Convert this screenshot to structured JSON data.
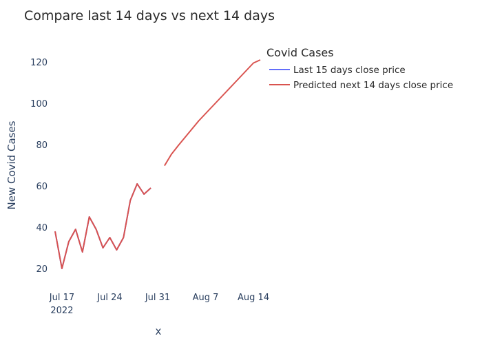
{
  "chart_data": {
    "type": "line",
    "title": "Compare last 14 days vs next 14 days",
    "xlabel": "x",
    "ylabel": "New Covid Cases",
    "x_ticks": [
      {
        "date": "2022-07-17",
        "label": "Jul 17",
        "sublabel": "2022"
      },
      {
        "date": "2022-07-24",
        "label": "Jul 24",
        "sublabel": ""
      },
      {
        "date": "2022-07-31",
        "label": "Jul 31",
        "sublabel": ""
      },
      {
        "date": "2022-08-07",
        "label": "Aug 7",
        "sublabel": ""
      },
      {
        "date": "2022-08-14",
        "label": "Aug 14",
        "sublabel": ""
      }
    ],
    "y_ticks": [
      20,
      40,
      60,
      80,
      100,
      120
    ],
    "xlim": [
      "2022-07-16",
      "2022-08-15"
    ],
    "ylim": [
      16,
      124
    ],
    "grid": false,
    "legend": {
      "title": "Covid Cases",
      "position": "top-right"
    },
    "series": [
      {
        "name": "Last 15 days close price",
        "color": "#636efa",
        "x": [
          "2022-07-16",
          "2022-07-17",
          "2022-07-18",
          "2022-07-19",
          "2022-07-20",
          "2022-07-21",
          "2022-07-22",
          "2022-07-23",
          "2022-07-24",
          "2022-07-25",
          "2022-07-26",
          "2022-07-27",
          "2022-07-28",
          "2022-07-29",
          "2022-07-30"
        ],
        "y": [
          38,
          20,
          33,
          39,
          28,
          45,
          39,
          30,
          35,
          29,
          35,
          53,
          61,
          56,
          59
        ]
      },
      {
        "name": "Predicted next 14 days close price",
        "color": "#d9534f",
        "segments": [
          {
            "x": [
              "2022-07-16",
              "2022-07-17",
              "2022-07-18",
              "2022-07-19",
              "2022-07-20",
              "2022-07-21",
              "2022-07-22",
              "2022-07-23",
              "2022-07-24",
              "2022-07-25",
              "2022-07-26",
              "2022-07-27",
              "2022-07-28",
              "2022-07-29",
              "2022-07-30"
            ],
            "y": [
              38,
              20,
              33,
              39,
              28,
              45,
              39,
              30,
              35,
              29,
              35,
              53,
              61,
              56,
              59
            ]
          },
          {
            "x": [
              "2022-08-01",
              "2022-08-02",
              "2022-08-03",
              "2022-08-04",
              "2022-08-05",
              "2022-08-06",
              "2022-08-07",
              "2022-08-08",
              "2022-08-09",
              "2022-08-10",
              "2022-08-11",
              "2022-08-12",
              "2022-08-13",
              "2022-08-14",
              "2022-08-15"
            ],
            "y": [
              69.8,
              75.3,
              79.5,
              83.5,
              87.5,
              91.5,
              95,
              98.5,
              102,
              105.5,
              109,
              112.5,
              116,
              119.5,
              121
            ]
          }
        ]
      }
    ]
  }
}
